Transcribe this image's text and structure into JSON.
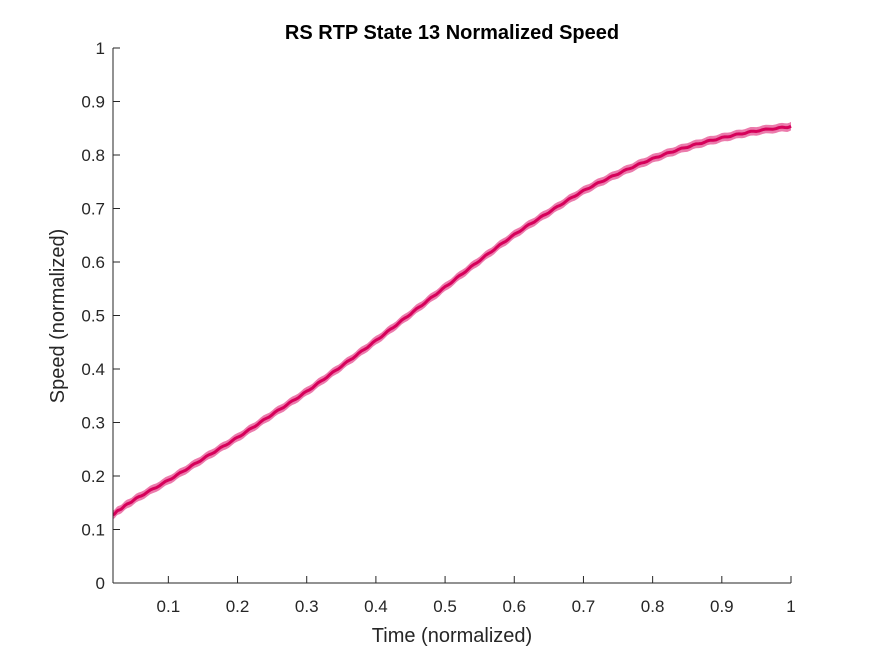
{
  "chart_data": {
    "type": "line",
    "title": "RS  RTP State 13 Normalized Speed",
    "xlabel": "Time (normalized)",
    "ylabel": "Speed (normalized)",
    "xlim": [
      0.02,
      1
    ],
    "ylim": [
      0,
      1
    ],
    "xticks": [
      0.1,
      0.2,
      0.3,
      0.4,
      0.5,
      0.6,
      0.7,
      0.8,
      0.9,
      1
    ],
    "xtick_labels": [
      "0.1",
      "0.2",
      "0.3",
      "0.4",
      "0.5",
      "0.6",
      "0.7",
      "0.8",
      "0.9",
      "1"
    ],
    "yticks": [
      0,
      0.1,
      0.2,
      0.3,
      0.4,
      0.5,
      0.6,
      0.7,
      0.8,
      0.9,
      1
    ],
    "ytick_labels": [
      "0",
      "0.1",
      "0.2",
      "0.3",
      "0.4",
      "0.5",
      "0.6",
      "0.7",
      "0.8",
      "0.9",
      "1"
    ],
    "grid": false,
    "legend": "none",
    "series": [
      {
        "line_color": "#d6005a",
        "band_color": "#e8649e",
        "x": [
          0.02,
          0.05,
          0.1,
          0.15,
          0.2,
          0.25,
          0.3,
          0.35,
          0.4,
          0.45,
          0.5,
          0.55,
          0.6,
          0.65,
          0.7,
          0.75,
          0.8,
          0.85,
          0.9,
          0.95,
          1.0
        ],
        "y": [
          0.128,
          0.155,
          0.192,
          0.232,
          0.272,
          0.315,
          0.358,
          0.405,
          0.453,
          0.503,
          0.553,
          0.603,
          0.651,
          0.693,
          0.733,
          0.765,
          0.793,
          0.815,
          0.832,
          0.845,
          0.853
        ],
        "band_halfwidth": 0.008
      }
    ]
  }
}
